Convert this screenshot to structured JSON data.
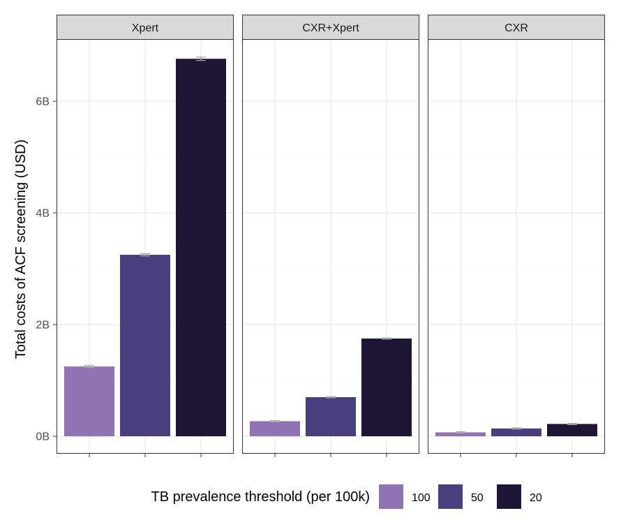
{
  "chart_data": {
    "type": "bar",
    "ylabel": "Total costs of ACF screening (USD)",
    "y_ticks": [
      "0B",
      "2B",
      "4B",
      "6B"
    ],
    "y_tick_values": [
      0,
      2,
      4,
      6
    ],
    "ylim": [
      -0.33,
      7.1
    ],
    "y_unit": "billion USD",
    "grid": true,
    "legend": {
      "title": "TB prevalence threshold (per 100k)",
      "position": "bottom",
      "entries": [
        {
          "label": "100",
          "color": "#8f73b3"
        },
        {
          "label": "50",
          "color": "#4a3f7e"
        },
        {
          "label": "20",
          "color": "#1e1433"
        }
      ]
    },
    "panels": [
      {
        "title": "Xpert",
        "values": [
          1.25,
          3.25,
          6.76
        ],
        "error": [
          0.02,
          0.02,
          0.03
        ]
      },
      {
        "title": "CXR+Xpert",
        "values": [
          0.27,
          0.7,
          1.75
        ],
        "error": [
          0.01,
          0.01,
          0.01
        ]
      },
      {
        "title": "CXR",
        "values": [
          0.07,
          0.14,
          0.22
        ],
        "error": [
          0.01,
          0.01,
          0.01
        ]
      }
    ],
    "error_bar_color": "#a6a6a6",
    "strip_color": "#d9d9d9"
  }
}
